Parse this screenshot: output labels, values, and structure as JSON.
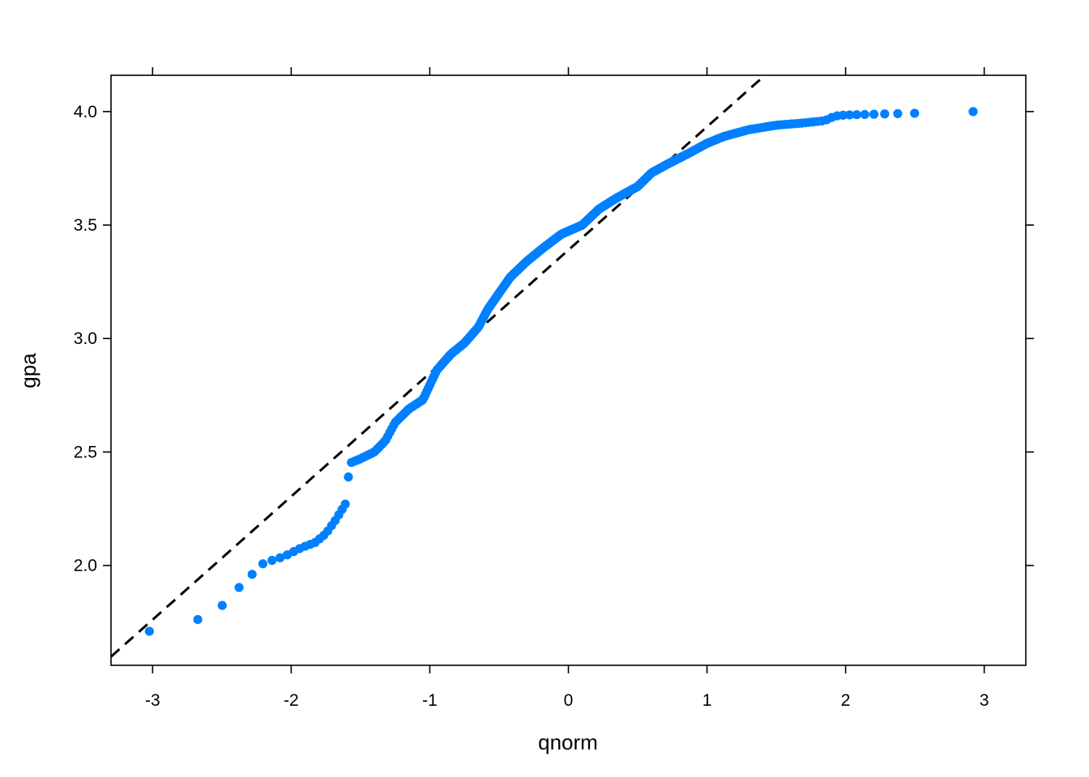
{
  "chart_data": {
    "type": "scatter",
    "title": "",
    "xlabel": "qnorm",
    "ylabel": "gpa",
    "xlim": [
      -3.3,
      3.3
    ],
    "ylim": [
      1.56,
      4.16
    ],
    "xticks": [
      -3,
      -2,
      -1,
      0,
      1,
      2,
      3
    ],
    "xtick_labels": [
      "-3",
      "-2",
      "-1",
      "0",
      "1",
      "2",
      "3"
    ],
    "yticks": [
      2.0,
      2.5,
      3.0,
      3.5,
      4.0
    ],
    "ytick_labels": [
      "2.0",
      "2.5",
      "3.0",
      "3.5",
      "4.0"
    ],
    "grid": false,
    "legend": "none",
    "point_color": "#0080ff",
    "reference_line": {
      "style": "dashed",
      "color": "#000000",
      "slope": 0.543,
      "intercept": 3.39
    },
    "quantile_curve": [
      [
        -2.9,
        1.71
      ],
      [
        -2.55,
        1.79
      ],
      [
        -2.35,
        1.92
      ],
      [
        -2.2,
        2.01
      ],
      [
        -2.05,
        2.04
      ],
      [
        -1.92,
        2.08
      ],
      [
        -1.83,
        2.1
      ],
      [
        -1.75,
        2.14
      ],
      [
        -1.68,
        2.2
      ],
      [
        -1.6,
        2.28
      ],
      [
        -1.58,
        2.45
      ],
      [
        -1.5,
        2.47
      ],
      [
        -1.4,
        2.5
      ],
      [
        -1.32,
        2.55
      ],
      [
        -1.25,
        2.63
      ],
      [
        -1.15,
        2.69
      ],
      [
        -1.05,
        2.73
      ],
      [
        -0.95,
        2.86
      ],
      [
        -0.85,
        2.93
      ],
      [
        -0.75,
        2.98
      ],
      [
        -0.65,
        3.05
      ],
      [
        -0.58,
        3.13
      ],
      [
        -0.5,
        3.2
      ],
      [
        -0.42,
        3.27
      ],
      [
        -0.3,
        3.34
      ],
      [
        -0.18,
        3.4
      ],
      [
        -0.05,
        3.46
      ],
      [
        0.1,
        3.5
      ],
      [
        0.22,
        3.57
      ],
      [
        0.35,
        3.62
      ],
      [
        0.5,
        3.67
      ],
      [
        0.6,
        3.73
      ],
      [
        0.72,
        3.77
      ],
      [
        0.88,
        3.82
      ],
      [
        1.0,
        3.86
      ],
      [
        1.12,
        3.89
      ],
      [
        1.3,
        3.92
      ],
      [
        1.5,
        3.94
      ],
      [
        1.7,
        3.95
      ],
      [
        1.85,
        3.96
      ],
      [
        1.92,
        3.98
      ],
      [
        2.0,
        3.985
      ],
      [
        2.3,
        3.99
      ],
      [
        2.55,
        3.993
      ]
    ],
    "tail_points": [
      [
        2.92,
        4.0
      ]
    ],
    "n_points": 400
  }
}
